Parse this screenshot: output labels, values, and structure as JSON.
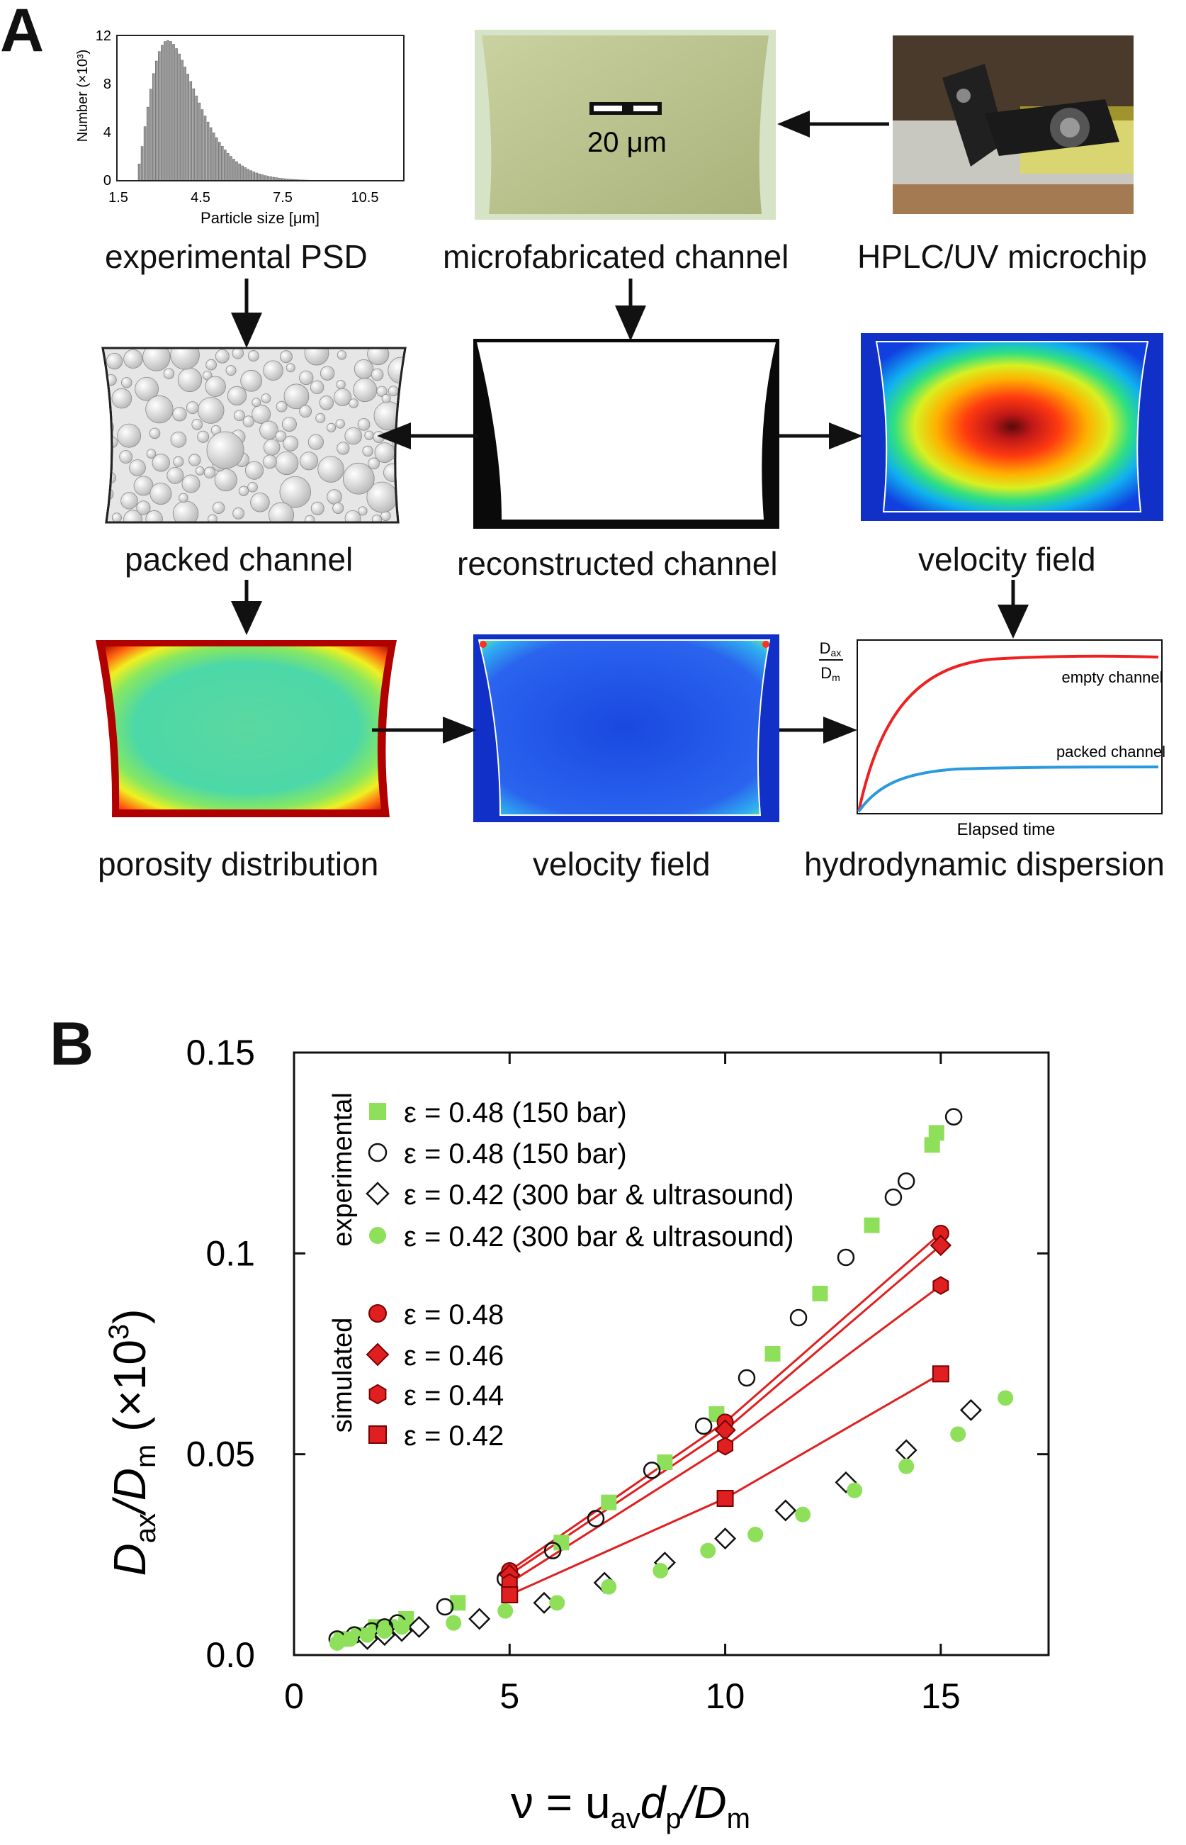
{
  "panel_a": {
    "letter": "A",
    "psd": {
      "ylabel": "Number (×10³)",
      "xlabel": "Particle size [μm]",
      "yticks": [
        "0",
        "4",
        "8",
        "12"
      ],
      "xticks": [
        "1.5",
        "4.5",
        "7.5",
        "10.5"
      ]
    },
    "scale_bar": "20 μm",
    "captions": {
      "psd": "experimental PSD",
      "micro": "microfabricated channel",
      "hplc": "HPLC/UV microchip",
      "packed": "packed channel",
      "recon": "reconstructed channel",
      "vel1": "velocity field",
      "porosity": "porosity distribution",
      "vel2": "velocity field",
      "disp": "hydrodynamic dispersion"
    },
    "dispersion": {
      "y_num": "D",
      "y_num_sub": "ax",
      "y_den": "D",
      "y_den_sub": "m",
      "empty": "empty channel",
      "packed": "packed channel",
      "xlabel": "Elapsed time"
    }
  },
  "panel_b": {
    "letter": "B",
    "chart_data": {
      "type": "scatter",
      "xlim": [
        0,
        17.5
      ],
      "ylim": [
        0,
        0.15
      ],
      "xticks": [
        "0",
        "5",
        "10",
        "15"
      ],
      "yticks": [
        "0.0",
        "0.05",
        "0.1",
        "0.15"
      ],
      "ylabel": {
        "main": "D",
        "sub1": "ax",
        "slash": "/D",
        "sub2": "m",
        "tail": " (×10",
        "sup": "3",
        "end": ")"
      },
      "xlabel": {
        "nu": "ν = u",
        "sub1": "av",
        "mid": "d",
        "sub2": "p",
        "slash": "/D",
        "sub3": "m"
      },
      "group_labels": {
        "experimental": "experimental",
        "simulated": "simulated"
      },
      "legend": [
        {
          "label": "ε = 0.48 (150 bar)",
          "marker": "square",
          "color": "#8ee05a"
        },
        {
          "label": "ε = 0.48 (150 bar)",
          "marker": "open-circle",
          "color": "#111111"
        },
        {
          "label": "ε = 0.42 (300 bar & ultrasound)",
          "marker": "open-diamond",
          "color": "#111111"
        },
        {
          "label": "ε = 0.42 (300 bar & ultrasound)",
          "marker": "circle",
          "color": "#8ee05a"
        },
        {
          "label": "ε = 0.48",
          "marker": "red-circle",
          "color": "#e02020"
        },
        {
          "label": "ε = 0.46",
          "marker": "red-diamond",
          "color": "#e02020"
        },
        {
          "label": "ε = 0.44",
          "marker": "red-hexagon",
          "color": "#e02020"
        },
        {
          "label": "ε = 0.42",
          "marker": "red-square",
          "color": "#e02020"
        }
      ],
      "series": [
        {
          "name": "ε = 0.48 (150 bar)",
          "marker": "square",
          "color": "#8ee05a",
          "x": [
            1.1,
            1.5,
            1.9,
            2.2,
            2.6,
            3.8,
            5.0,
            6.2,
            7.3,
            8.6,
            9.8,
            11.1,
            12.2,
            13.4,
            14.8,
            14.9
          ],
          "y": [
            0.004,
            0.005,
            0.007,
            0.007,
            0.009,
            0.013,
            0.019,
            0.028,
            0.038,
            0.048,
            0.06,
            0.075,
            0.09,
            0.107,
            0.127,
            0.13
          ]
        },
        {
          "name": "ε = 0.48 (150 bar)",
          "marker": "open-circle",
          "color": "#111111",
          "x": [
            1.0,
            1.4,
            1.8,
            2.1,
            2.4,
            3.5,
            4.9,
            6.0,
            7.0,
            8.3,
            9.5,
            10.5,
            11.7,
            12.8,
            13.9,
            14.2,
            15.3
          ],
          "y": [
            0.004,
            0.005,
            0.006,
            0.007,
            0.008,
            0.012,
            0.019,
            0.026,
            0.034,
            0.046,
            0.057,
            0.069,
            0.084,
            0.099,
            0.114,
            0.118,
            0.134
          ]
        },
        {
          "name": "ε = 0.42 (300 bar & ultrasound)",
          "marker": "open-diamond",
          "color": "#111111",
          "x": [
            1.7,
            2.1,
            2.5,
            2.9,
            4.3,
            5.8,
            7.2,
            8.6,
            10.0,
            11.4,
            12.8,
            14.2,
            15.7
          ],
          "y": [
            0.004,
            0.005,
            0.006,
            0.007,
            0.009,
            0.013,
            0.018,
            0.023,
            0.029,
            0.036,
            0.043,
            0.051,
            0.061
          ]
        },
        {
          "name": "ε = 0.42 (300 bar & ultrasound)",
          "marker": "circle",
          "color": "#8ee05a",
          "x": [
            1.0,
            1.3,
            1.7,
            2.1,
            2.5,
            3.7,
            4.9,
            6.1,
            7.3,
            8.5,
            9.6,
            10.7,
            11.8,
            13.0,
            14.2,
            15.4,
            16.5
          ],
          "y": [
            0.003,
            0.004,
            0.005,
            0.006,
            0.007,
            0.008,
            0.011,
            0.013,
            0.017,
            0.021,
            0.026,
            0.03,
            0.035,
            0.041,
            0.047,
            0.055,
            0.064
          ]
        },
        {
          "name": "ε = 0.48",
          "marker": "red-circle",
          "color": "#e02020",
          "line": true,
          "x": [
            5,
            10,
            15
          ],
          "y": [
            0.021,
            0.058,
            0.105
          ]
        },
        {
          "name": "ε = 0.46",
          "marker": "red-diamond",
          "color": "#e02020",
          "line": true,
          "x": [
            5,
            10,
            15
          ],
          "y": [
            0.02,
            0.056,
            0.102
          ]
        },
        {
          "name": "ε = 0.44",
          "marker": "red-hexagon",
          "color": "#e02020",
          "line": true,
          "x": [
            5,
            10,
            15
          ],
          "y": [
            0.018,
            0.052,
            0.092
          ]
        },
        {
          "name": "ε = 0.42",
          "marker": "red-square",
          "color": "#e02020",
          "line": true,
          "x": [
            5,
            10,
            15
          ],
          "y": [
            0.015,
            0.039,
            0.07
          ]
        }
      ]
    }
  }
}
